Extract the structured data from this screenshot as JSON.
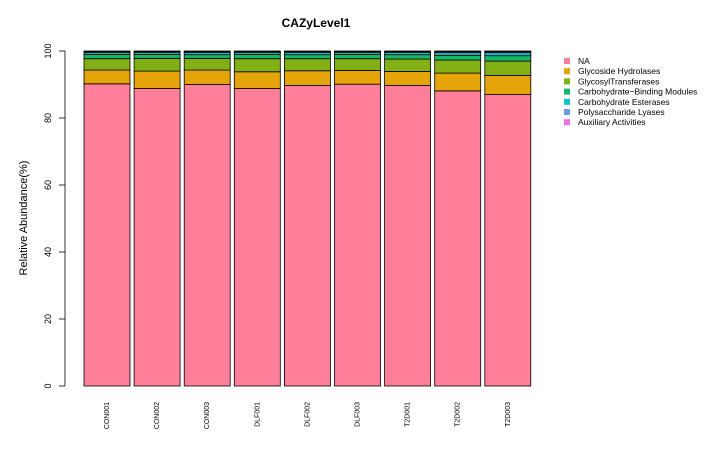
{
  "chart_data": {
    "type": "bar",
    "stacked": true,
    "title": "CAZyLevel1",
    "xlabel": "",
    "ylabel": "Relative Abundance(%)",
    "ylim": [
      0,
      100
    ],
    "yticks": [
      0,
      20,
      40,
      60,
      80,
      100
    ],
    "legend_position": "top-right",
    "grid": false,
    "categories": [
      "CON001",
      "CON002",
      "CON003",
      "DLF001",
      "DLF002",
      "DLF003",
      "T2D001",
      "T2D002",
      "T2D003"
    ],
    "series": [
      {
        "name": "NA",
        "color": "#FF7F9B",
        "values": [
          90.2,
          88.8,
          90.0,
          88.8,
          89.7,
          90.1,
          89.7,
          88.1,
          87.0
        ]
      },
      {
        "name": "Glycoside Hydrolases",
        "color": "#E5A50A",
        "values": [
          4.1,
          5.2,
          4.3,
          5.0,
          4.4,
          4.1,
          4.2,
          5.3,
          5.7
        ]
      },
      {
        "name": "GlycosylTransferases",
        "color": "#82B014",
        "values": [
          3.4,
          3.8,
          3.5,
          3.9,
          3.6,
          3.5,
          3.7,
          3.9,
          4.3
        ]
      },
      {
        "name": "Carbohydrate−Binding Modules",
        "color": "#15B86B",
        "values": [
          1.3,
          1.2,
          1.1,
          1.3,
          1.2,
          1.3,
          1.3,
          1.4,
          1.6
        ]
      },
      {
        "name": "Carbohydrate Esterases",
        "color": "#0EC3CD",
        "values": [
          0.6,
          0.6,
          0.7,
          0.6,
          0.7,
          0.6,
          0.7,
          0.8,
          0.9
        ]
      },
      {
        "name": "Polysaccharide Lyases",
        "color": "#6A9BE8",
        "values": [
          0.2,
          0.2,
          0.2,
          0.2,
          0.2,
          0.2,
          0.2,
          0.3,
          0.3
        ]
      },
      {
        "name": "Auxiliary Activities",
        "color": "#EE6EEA",
        "values": [
          0.2,
          0.2,
          0.2,
          0.2,
          0.2,
          0.2,
          0.2,
          0.2,
          0.2
        ]
      }
    ]
  }
}
